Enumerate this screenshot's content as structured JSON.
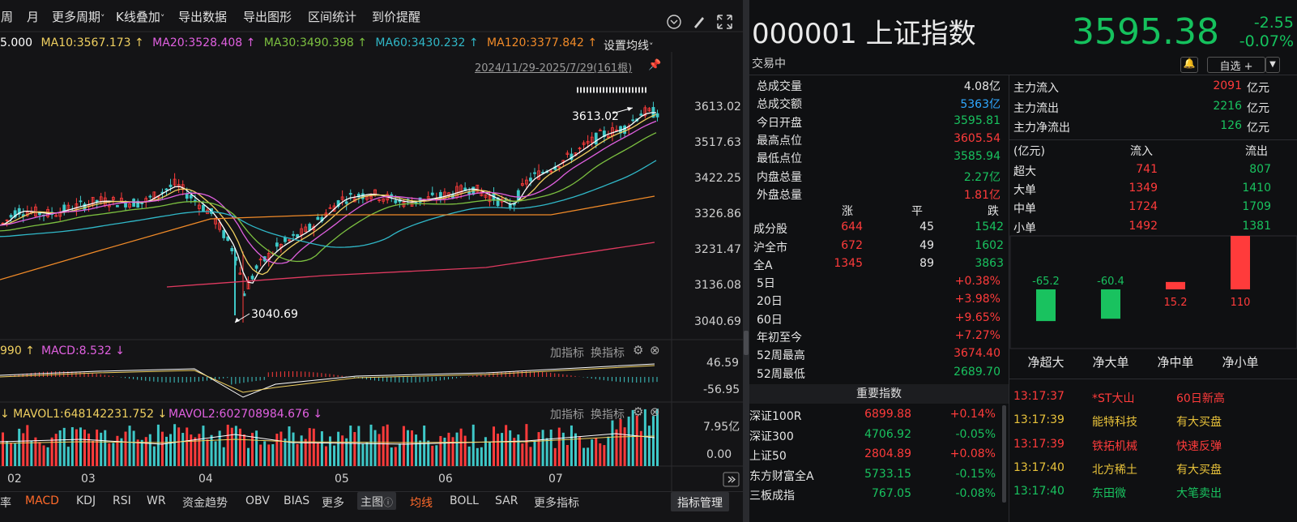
{
  "toolbar": {
    "items": [
      "周",
      "月",
      "更多周期",
      "K线叠加",
      "导出数据",
      "导出图形",
      "区间统计",
      "到价提醒"
    ],
    "more_period_arrow": "˅",
    "kline_arrow": "˅"
  },
  "ma": {
    "ma5": "5.000",
    "ma10": "MA10:3567.173 ↑",
    "ma20": "MA20:3528.408 ↑",
    "ma30": "MA30:3490.398 ↑",
    "ma60": "MA60:3430.232 ↑",
    "ma120": "MA120:3377.842 ↑",
    "set_label": "设置均线",
    "set_arrow": "˅"
  },
  "range": "2024/11/29-2025/7/29(161根)",
  "price_axis": [
    "3613.02",
    "3517.63",
    "3422.25",
    "3326.86",
    "3231.47",
    "3136.08",
    "3040.69"
  ],
  "annotations": {
    "high": "3613.02",
    "low": "3040.69"
  },
  "macd": {
    "label1": "990 ↑",
    "label2": "MACD:8.532 ↓",
    "add": "加指标",
    "switch": "换指标",
    "axis_top": "46.59",
    "axis_bottom": "-56.95"
  },
  "vol": {
    "label1": "↓ MAVOL1:648142231.752 ↓",
    "label2": "MAVOL2:602708984.676 ↓",
    "add": "加指标",
    "switch": "换指标",
    "axis_top": "7.95亿",
    "axis_bottom": "0.00"
  },
  "months": [
    "02",
    "03",
    "04",
    "05",
    "06",
    "07"
  ],
  "bottom_tabs": [
    "率",
    "MACD",
    "KDJ",
    "RSI",
    "WR",
    "资金趋势",
    "OBV",
    "BIAS",
    "更多",
    "主图",
    "均线",
    "BOLL",
    "SAR",
    "更多指标",
    "指标管理"
  ],
  "quote": {
    "code_name": "000001 上证指数",
    "price": "3595.38",
    "change": "-2.55",
    "change_pct": "-0.07%",
    "status": "交易中",
    "zixuan": "自选 +",
    "stats": [
      {
        "label": "总成交量",
        "value": "4.08亿",
        "color": "white"
      },
      {
        "label": "总成交额",
        "value": "5363亿",
        "color": "blue"
      },
      {
        "label": "今日开盘",
        "value": "3595.81",
        "color": "green"
      },
      {
        "label": "最高点位",
        "value": "3605.54",
        "color": "red"
      },
      {
        "label": "最低点位",
        "value": "3585.94",
        "color": "green"
      },
      {
        "label": "内盘总量",
        "value": "2.27亿",
        "color": "green"
      },
      {
        "label": "外盘总量",
        "value": "1.81亿",
        "color": "red"
      }
    ],
    "breadth_head": [
      "涨",
      "平",
      "跌"
    ],
    "breadth": [
      {
        "label": "成分股",
        "up": "644",
        "flat": "45",
        "down": "1542"
      },
      {
        "label": "沪全市",
        "up": "672",
        "flat": "49",
        "down": "1602"
      },
      {
        "label": "全A",
        "up": "1345",
        "flat": "89",
        "down": "3863"
      }
    ],
    "periods": [
      {
        "label": "5日",
        "value": "+0.38%",
        "color": "red"
      },
      {
        "label": "20日",
        "value": "+3.98%",
        "color": "red"
      },
      {
        "label": "60日",
        "value": "+9.65%",
        "color": "red"
      },
      {
        "label": "年初至今",
        "value": "+7.27%",
        "color": "red"
      },
      {
        "label": "52周最高",
        "value": "3674.40",
        "color": "red"
      },
      {
        "label": "52周最低",
        "value": "2689.70",
        "color": "green"
      }
    ]
  },
  "important": {
    "title": "重要指数",
    "rows": [
      {
        "name": "深证100R",
        "value": "6899.88",
        "pct": "+0.14%",
        "color": "red"
      },
      {
        "name": "深证300",
        "value": "4706.92",
        "pct": "-0.05%",
        "color": "green"
      },
      {
        "name": "上证50",
        "value": "2804.89",
        "pct": "+0.08%",
        "color": "red"
      },
      {
        "name": "东方财富全A",
        "value": "5733.15",
        "pct": "-0.15%",
        "color": "green"
      },
      {
        "name": "三板成指",
        "value": "767.05",
        "pct": "-0.08%",
        "color": "green"
      }
    ]
  },
  "flow": {
    "rows": [
      {
        "label": "主力流入",
        "value": "2091",
        "color": "red",
        "unit": "亿元"
      },
      {
        "label": "主力流出",
        "value": "2216",
        "color": "green",
        "unit": "亿元"
      },
      {
        "label": "主力净流出",
        "value": "126",
        "color": "green",
        "unit": "亿元"
      }
    ],
    "table_head": [
      "(亿元)",
      "流入",
      "流出"
    ],
    "table": [
      {
        "label": "超大",
        "in": "741",
        "out": "807"
      },
      {
        "label": "大单",
        "in": "1349",
        "out": "1410"
      },
      {
        "label": "中单",
        "in": "1724",
        "out": "1709"
      },
      {
        "label": "小单",
        "in": "1492",
        "out": "1381"
      }
    ],
    "bars": [
      {
        "label": "净超大",
        "value": -65.2,
        "text": "-65.2"
      },
      {
        "label": "净大单",
        "value": -60.4,
        "text": "-60.4"
      },
      {
        "label": "净中单",
        "value": 15.2,
        "text": "15.2"
      },
      {
        "label": "净小单",
        "value": 110,
        "text": "110"
      }
    ]
  },
  "ticker": [
    {
      "time": "13:17:37",
      "name": "*ST大山",
      "event": "60日新高",
      "ncolor": "red",
      "ecolor": "red",
      "tcolor": "red"
    },
    {
      "time": "13:17:39",
      "name": "能特科技",
      "event": "有大买盘",
      "ncolor": "yellow",
      "ecolor": "yellow",
      "tcolor": "yellow"
    },
    {
      "time": "13:17:39",
      "name": "铁拓机械",
      "event": "快速反弹",
      "ncolor": "red",
      "ecolor": "red",
      "tcolor": "red"
    },
    {
      "time": "13:17:40",
      "name": "北方稀土",
      "event": "有大买盘",
      "ncolor": "yellow",
      "ecolor": "yellow",
      "tcolor": "yellow"
    },
    {
      "time": "13:17:40",
      "name": "东田微",
      "event": "大笔卖出",
      "ncolor": "green",
      "ecolor": "green",
      "tcolor": "green"
    }
  ],
  "colors": {
    "up": "#ff3b3b",
    "down": "#19c25f",
    "ma5": "#ffffff",
    "ma10": "#f0d060",
    "ma20": "#e060e0",
    "ma30": "#7cc040",
    "ma60": "#30b8c8",
    "ma120": "#f08a28",
    "long": "#e03a60",
    "blue": "#30a8ff"
  }
}
